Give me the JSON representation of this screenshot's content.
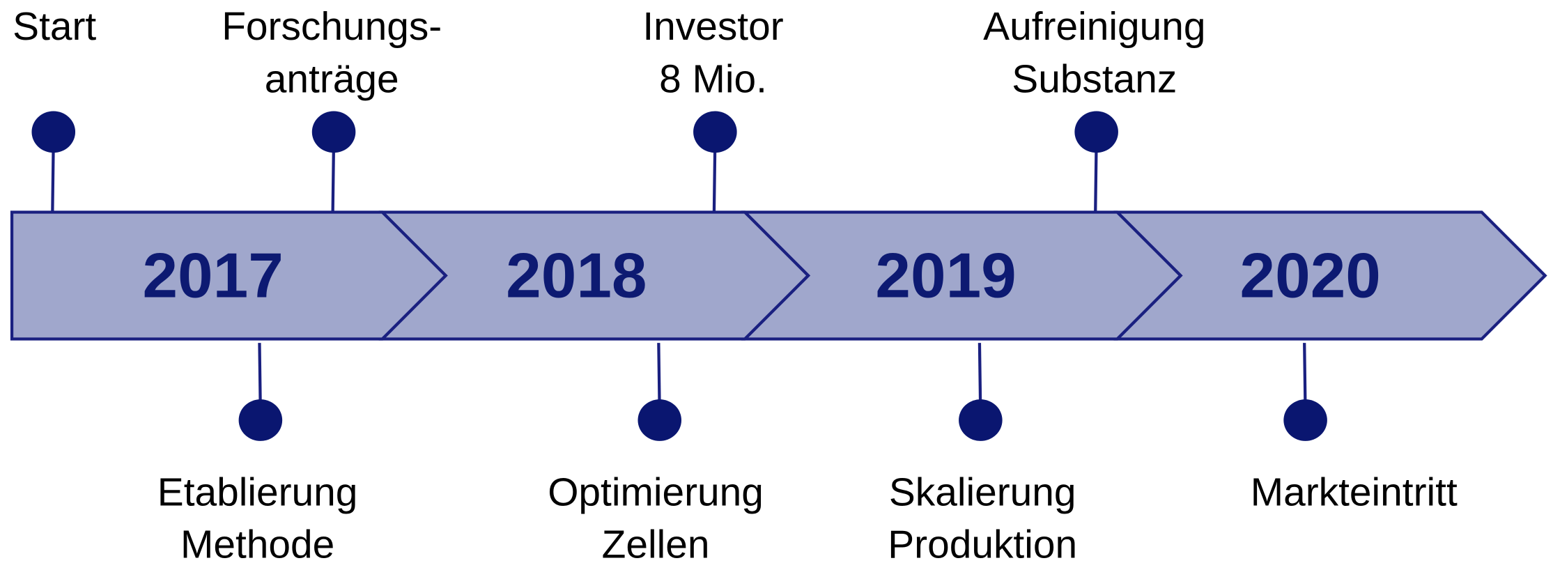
{
  "timeline": {
    "years": [
      "2017",
      "2018",
      "2019",
      "2020"
    ],
    "top_events": [
      {
        "lines": [
          "Start"
        ]
      },
      {
        "lines": [
          "Forschungs-",
          "anträge"
        ]
      },
      {
        "lines": [
          "Investor",
          "8 Mio."
        ]
      },
      {
        "lines": [
          "Aufreinigung",
          "Substanz"
        ]
      }
    ],
    "bottom_events": [
      {
        "lines": [
          "Etablierung",
          "Methode"
        ]
      },
      {
        "lines": [
          "Optimierung",
          "Zellen"
        ]
      },
      {
        "lines": [
          "Skalierung",
          "Produktion"
        ]
      },
      {
        "lines": [
          "Markteintritt"
        ]
      }
    ]
  }
}
